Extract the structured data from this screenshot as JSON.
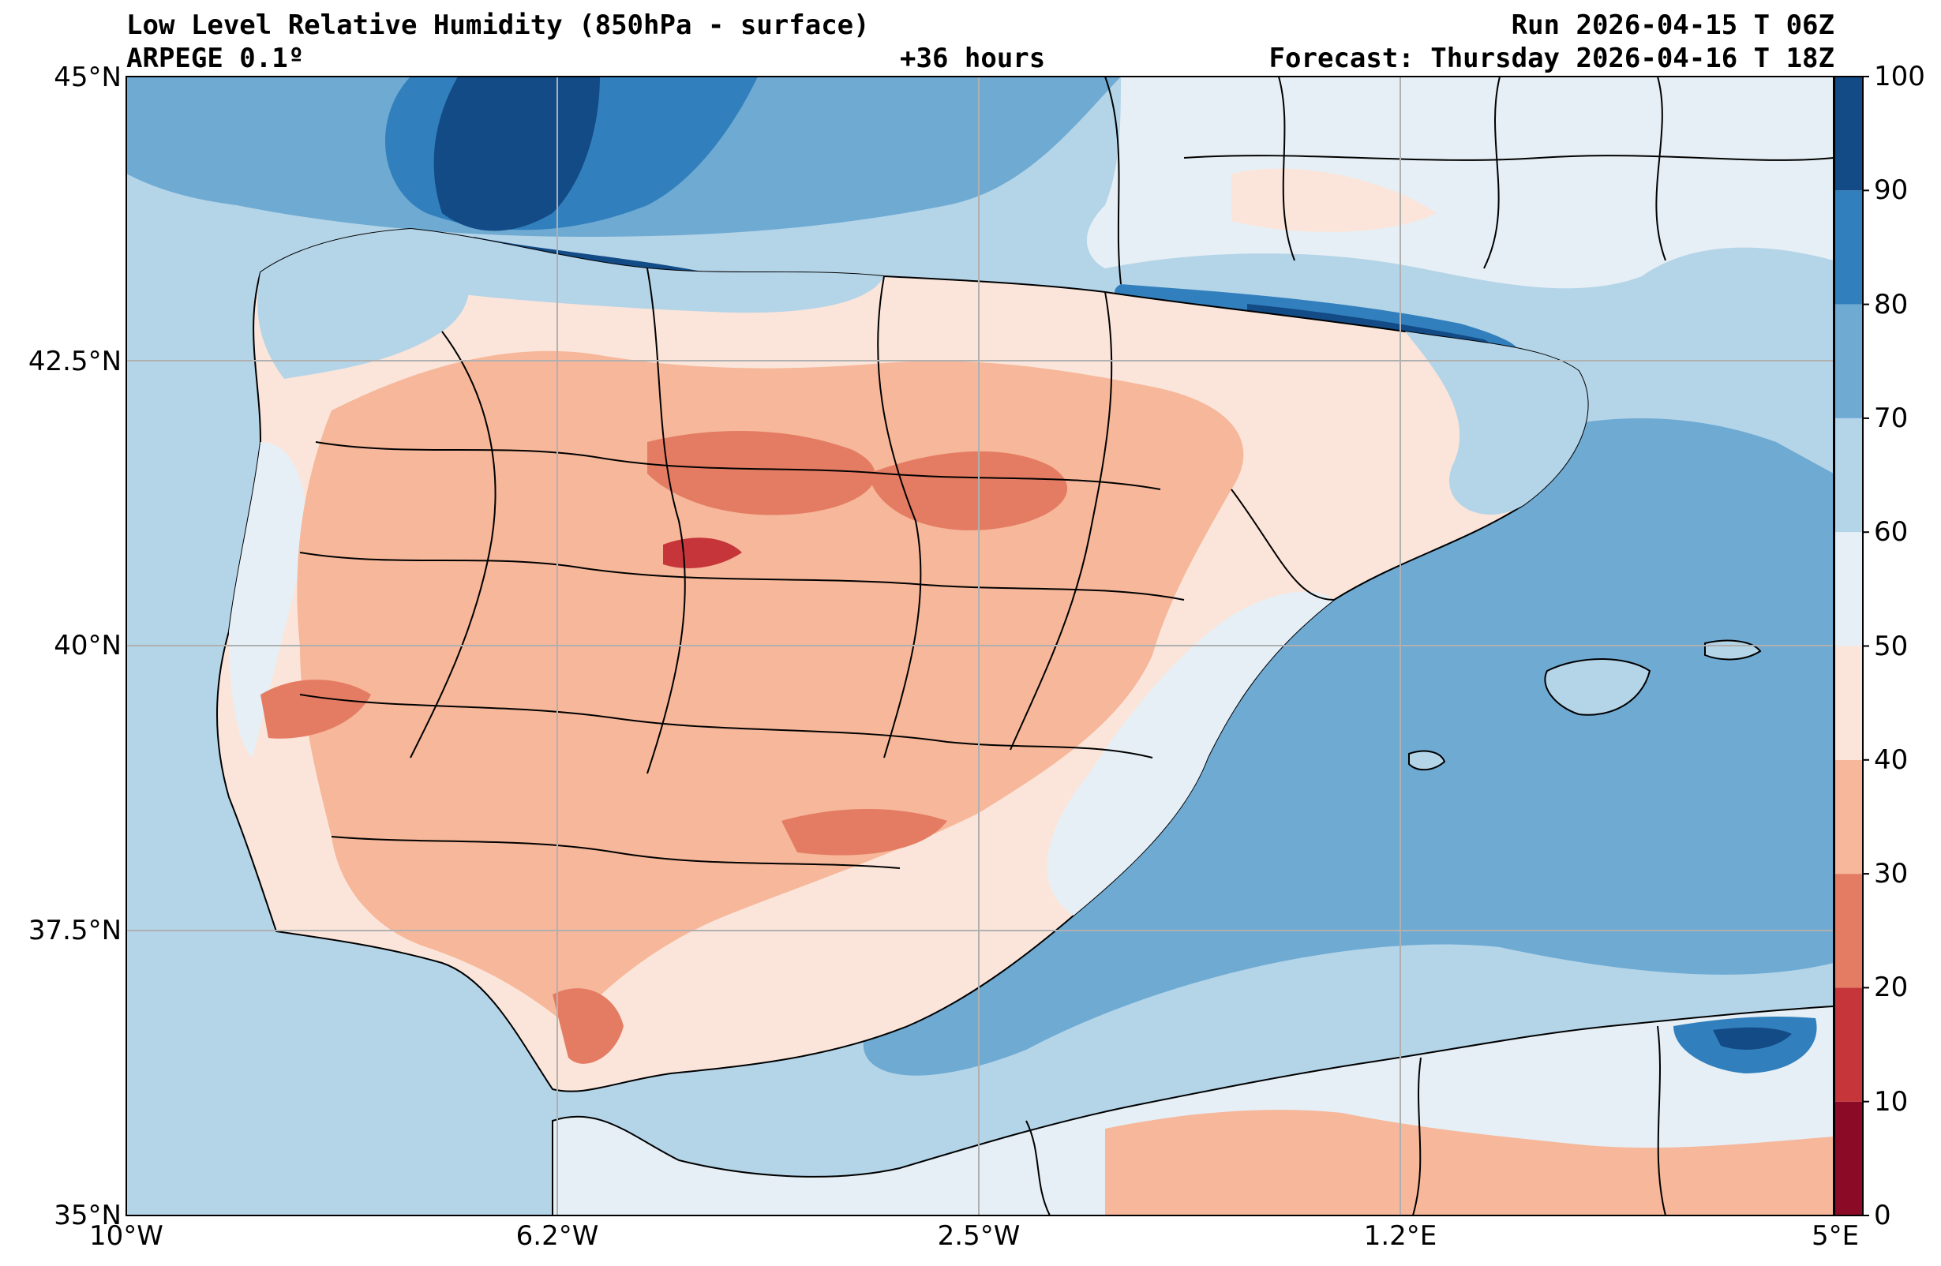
{
  "header": {
    "title": "Low Level Relative Humidity (850hPa - surface)",
    "model": "ARPEGE 0.1º",
    "lead_time": "+36 hours",
    "run": "Run 2026-04-15 T 06Z",
    "forecast": "Forecast: Thursday 2026-04-16 T 18Z"
  },
  "axes": {
    "lat_ticks": [
      "45°N",
      "42.5°N",
      "40°N",
      "37.5°N",
      "35°N"
    ],
    "lon_ticks": [
      "10°W",
      "6.2°W",
      "2.5°W",
      "1.2°E",
      "5°E"
    ]
  },
  "colorbar": {
    "ticks": [
      "0",
      "10",
      "20",
      "30",
      "40",
      "50",
      "60",
      "70",
      "80",
      "90",
      "100"
    ],
    "colors": [
      "#8b0b26",
      "#c6353a",
      "#e47c63",
      "#f6b79a",
      "#fbe5da",
      "#e6eff5",
      "#b4d4e8",
      "#6eaad2",
      "#3180bd",
      "#134b87"
    ]
  },
  "map": {
    "sea_color": "#b4d4e8",
    "land_color": "#fbe5da",
    "grid_color": "#b0b0b0",
    "border_color": "#000000"
  }
}
